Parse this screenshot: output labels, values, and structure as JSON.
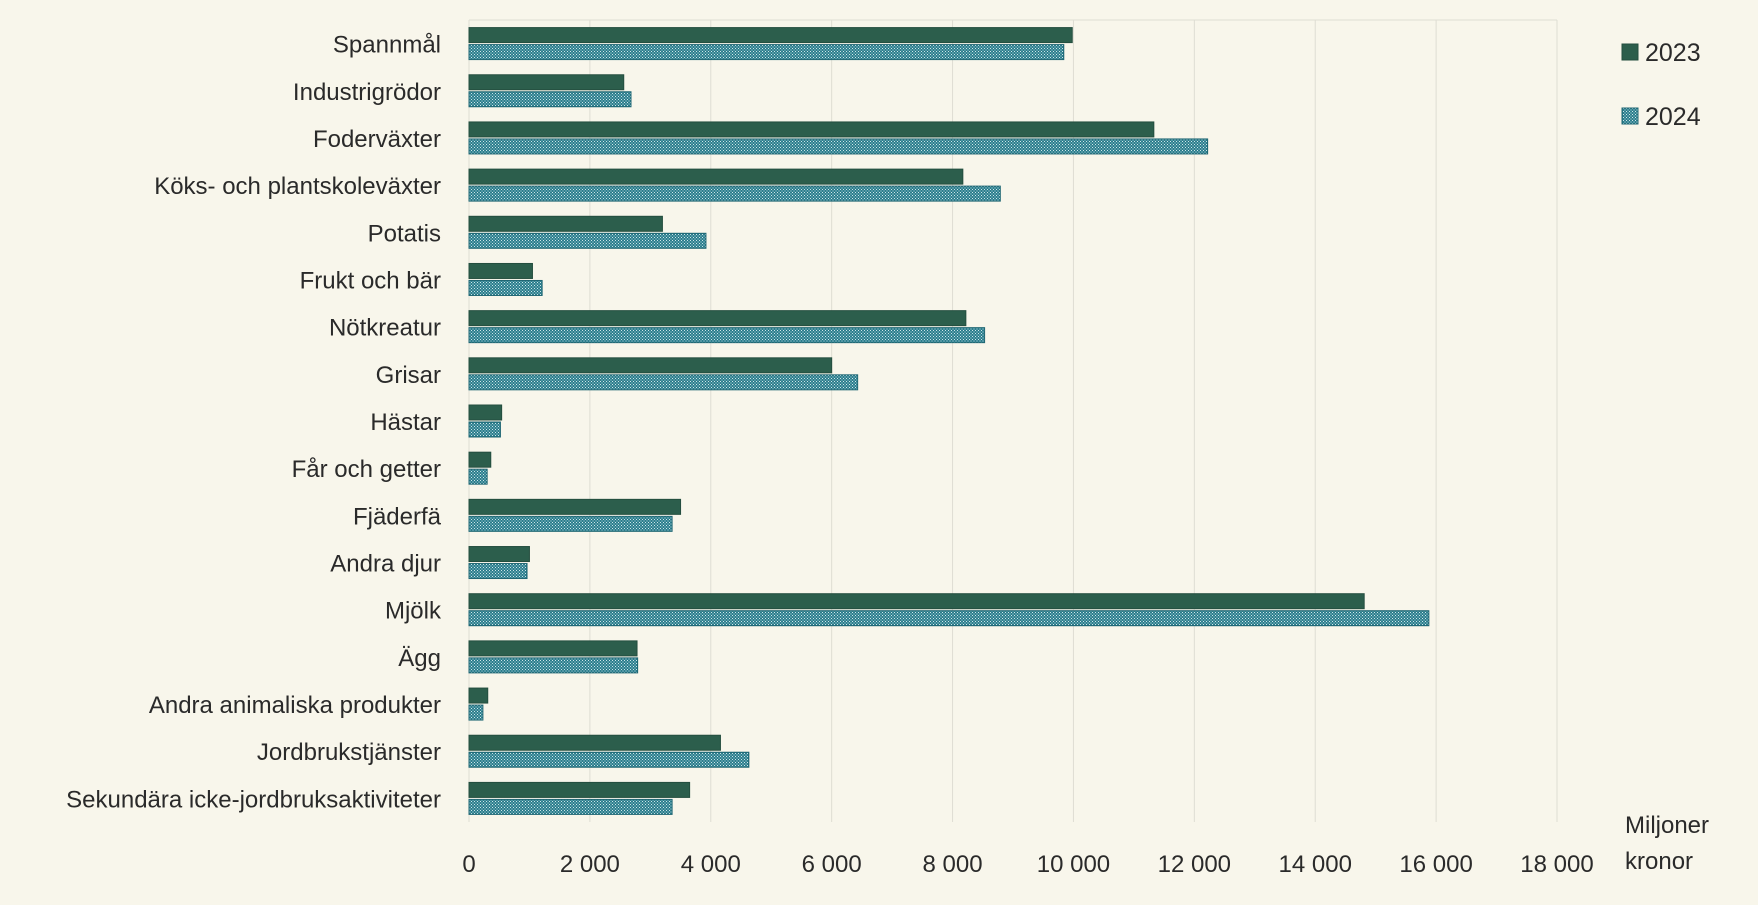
{
  "chart_data": {
    "type": "bar",
    "orientation": "horizontal",
    "categories": [
      "Spannmål",
      "Industrigrödor",
      "Foderväxter",
      "Köks- och plantskoleväxter",
      "Potatis",
      "Frukt och bär",
      "Nötkreatur",
      "Grisar",
      "Hästar",
      "Får och getter",
      "Fjäderfä",
      "Andra djur",
      "Mjölk",
      "Ägg",
      "Andra animaliska produkter",
      "Jordbrukstjänster",
      "Sekundära icke-jordbruksaktiviteter"
    ],
    "series": [
      {
        "name": "2023",
        "color": "#2c5e4c",
        "pattern": "solid",
        "values": [
          9980,
          2560,
          11330,
          8170,
          3200,
          1050,
          8220,
          6000,
          540,
          360,
          3500,
          1000,
          14810,
          2780,
          310,
          4160,
          3650
        ]
      },
      {
        "name": "2024",
        "color": "#2a7d8c",
        "pattern": "dotted",
        "values": [
          9840,
          2680,
          12220,
          8790,
          3920,
          1210,
          8530,
          6430,
          520,
          300,
          3360,
          960,
          15880,
          2790,
          230,
          4630,
          3360
        ]
      }
    ],
    "xlim": [
      0,
      18000
    ],
    "xticks": [
      "0",
      "2 000",
      "4 000",
      "6 000",
      "8 000",
      "10 000",
      "12 000",
      "14 000",
      "16 000",
      "18 000"
    ],
    "xtick_values": [
      0,
      2000,
      4000,
      6000,
      8000,
      10000,
      12000,
      14000,
      16000,
      18000
    ],
    "unit_label_line1": "Miljoner",
    "unit_label_line2": "kronor",
    "grid": true,
    "legend_position": "top-right"
  }
}
